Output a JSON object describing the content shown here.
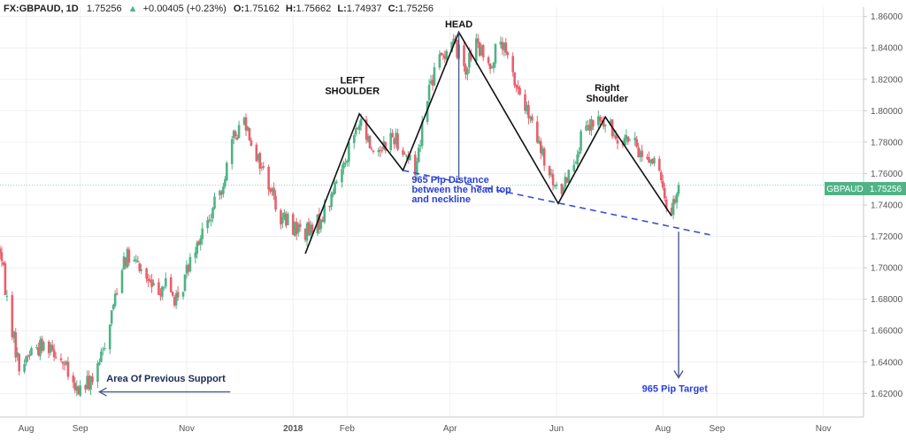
{
  "header": {
    "symbol": "FX:GBPAUD, 1D",
    "last": "1.75256",
    "change_arrow": "▲",
    "change": "+0.00405 (+0.23%)",
    "o_label": "O:",
    "o_value": "1.75162",
    "h_label": "H:",
    "h_value": "1.75662",
    "l_label": "L:",
    "l_value": "1.74937",
    "c_label": "C:",
    "c_value": "1.75256"
  },
  "price_tag": {
    "symbol": "GBPAUD",
    "value": "1.75256"
  },
  "annotations": {
    "head": "HEAD",
    "left_shoulder_1": "LEFT",
    "left_shoulder_2": "SHOULDER",
    "right_shoulder_1": "Right",
    "right_shoulder_2": "Shoulder",
    "distance_1": "965 Pip Distance",
    "distance_2": "between the head top",
    "distance_3": "and neckline",
    "support": "Area Of Previous Support",
    "target": "965 Pip Target"
  },
  "colors": {
    "up_candle": "#4fb386",
    "down_candle": "#e8606c",
    "pattern_line": "#111111",
    "neckline": "#3a4fd8",
    "annotation_blue": "#2a3fd6",
    "arrow": "#4a5a8c",
    "price_line": "#4fb386"
  },
  "chart_data": {
    "type": "candlestick",
    "y_ticks": [
      "1.86000",
      "1.84000",
      "1.82000",
      "1.80000",
      "1.78000",
      "1.76000",
      "1.74000",
      "1.72000",
      "1.70000",
      "1.68000",
      "1.66000",
      "1.64000",
      "1.62000"
    ],
    "x_ticks": [
      "Aug",
      "Sep",
      "Nov",
      "2018",
      "Feb",
      "Apr",
      "Jun",
      "Aug",
      "Sep",
      "Nov"
    ],
    "ylim": [
      1.605,
      1.866
    ],
    "anchors": [
      [
        "2017-07-17",
        1.712
      ],
      [
        "2017-07-21",
        1.68
      ],
      [
        "2017-07-28",
        1.636
      ],
      [
        "2017-08-04",
        1.648
      ],
      [
        "2017-08-15",
        1.652
      ],
      [
        "2017-08-22",
        1.64
      ],
      [
        "2017-08-29",
        1.621
      ],
      [
        "2017-09-05",
        1.626
      ],
      [
        "2017-09-11",
        1.634
      ],
      [
        "2017-09-19",
        1.672
      ],
      [
        "2017-09-26",
        1.708
      ],
      [
        "2017-10-05",
        1.7
      ],
      [
        "2017-10-13",
        1.686
      ],
      [
        "2017-10-20",
        1.69
      ],
      [
        "2017-10-27",
        1.676
      ],
      [
        "2017-11-04",
        1.712
      ],
      [
        "2017-11-14",
        1.73
      ],
      [
        "2017-11-21",
        1.752
      ],
      [
        "2017-11-28",
        1.782
      ],
      [
        "2017-12-04",
        1.796
      ],
      [
        "2017-12-11",
        1.772
      ],
      [
        "2017-12-18",
        1.754
      ],
      [
        "2017-12-25",
        1.732
      ],
      [
        "2018-01-05",
        1.724
      ],
      [
        "2018-01-12",
        1.722
      ],
      [
        "2018-01-22",
        1.742
      ],
      [
        "2018-02-01",
        1.774
      ],
      [
        "2018-02-08",
        1.792
      ],
      [
        "2018-02-16",
        1.774
      ],
      [
        "2018-02-28",
        1.784
      ],
      [
        "2018-03-06",
        1.774
      ],
      [
        "2018-03-12",
        1.762
      ],
      [
        "2018-03-19",
        1.812
      ],
      [
        "2018-03-26",
        1.832
      ],
      [
        "2018-04-02",
        1.846
      ],
      [
        "2018-04-10",
        1.828
      ],
      [
        "2018-04-16",
        1.842
      ],
      [
        "2018-04-23",
        1.828
      ],
      [
        "2018-04-30",
        1.844
      ],
      [
        "2018-05-07",
        1.822
      ],
      [
        "2018-05-14",
        1.802
      ],
      [
        "2018-05-21",
        1.78
      ],
      [
        "2018-05-28",
        1.758
      ],
      [
        "2018-06-02",
        1.746
      ],
      [
        "2018-06-09",
        1.764
      ],
      [
        "2018-06-16",
        1.784
      ],
      [
        "2018-06-25",
        1.794
      ],
      [
        "2018-07-04",
        1.786
      ],
      [
        "2018-07-12",
        1.782
      ],
      [
        "2018-07-20",
        1.772
      ],
      [
        "2018-07-28",
        1.768
      ],
      [
        "2018-08-02",
        1.742
      ],
      [
        "2018-08-06",
        1.738
      ],
      [
        "2018-08-10",
        1.75256
      ]
    ],
    "last_price": 1.75256,
    "pattern_line": [
      [
        "2018-01-08",
        1.709
      ],
      [
        "2018-02-08",
        1.798
      ],
      [
        "2018-03-05",
        1.762
      ],
      [
        "2018-04-06",
        1.85
      ],
      [
        "2018-06-02",
        1.741
      ],
      [
        "2018-06-29",
        1.796
      ],
      [
        "2018-08-06",
        1.733
      ]
    ],
    "neckline": [
      [
        "2018-03-05",
        1.762
      ],
      [
        "2018-08-28",
        1.721
      ]
    ],
    "head_vertical": [
      [
        "2018-04-06",
        1.85
      ],
      [
        "2018-04-06",
        1.756
      ]
    ],
    "target_arrow": [
      [
        "2018-08-10",
        1.723
      ],
      [
        "2018-08-10",
        1.63
      ]
    ],
    "support_arrow": [
      [
        "2017-11-26",
        1.621
      ],
      [
        "2017-09-12",
        1.621
      ]
    ],
    "annotation_points": {
      "head": [
        "2018-04-06",
        1.852
      ],
      "left_shoulder": [
        "2018-02-07",
        1.805
      ],
      "right_shoulder": [
        "2018-06-30",
        1.799
      ],
      "distance": [
        "2018-03-10",
        1.754
      ],
      "support": [
        "2017-09-16",
        1.622
      ],
      "target": [
        "2018-07-20",
        1.621
      ]
    }
  }
}
